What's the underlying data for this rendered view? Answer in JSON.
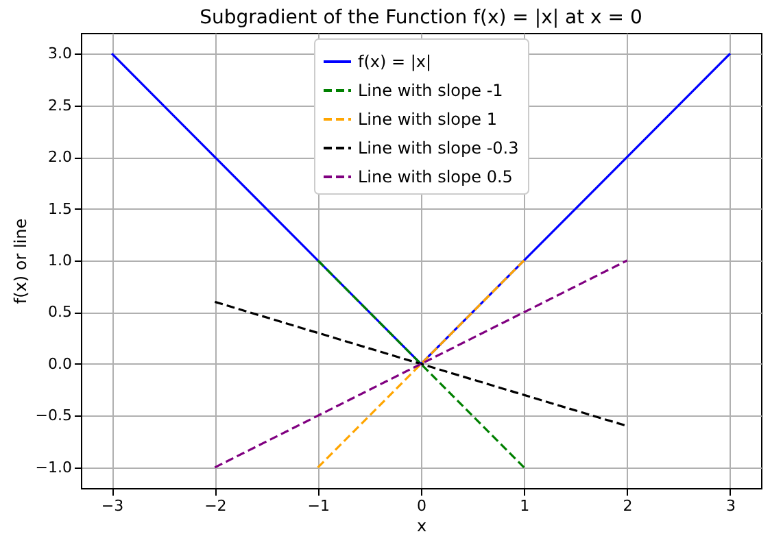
{
  "chart_data": {
    "type": "line",
    "title": "Subgradient of the Function f(x) = |x| at x = 0",
    "xlabel": "x",
    "ylabel": "f(x) or line",
    "xlim": [
      -3.3,
      3.3
    ],
    "xticks": [
      {
        "value": -3,
        "label": "−3"
      },
      {
        "value": -2,
        "label": "−2"
      },
      {
        "value": -1,
        "label": "−1"
      },
      0,
      1,
      2,
      3
    ],
    "ylim": [
      -1.2,
      3.2
    ],
    "yticks": [
      {
        "value": -1,
        "label": "−1.0"
      },
      {
        "value": -0.5,
        "label": "−0.5"
      },
      {
        "value": 0,
        "label": "0.0"
      },
      {
        "value": 0.5,
        "label": "0.5"
      },
      {
        "value": 1,
        "label": "1.0"
      },
      {
        "value": 1.5,
        "label": "1.5"
      },
      {
        "value": 2,
        "label": "2.0"
      },
      {
        "value": 2.5,
        "label": "2.5"
      },
      {
        "value": 3,
        "label": "3.0"
      }
    ],
    "grid": true,
    "legend": "top",
    "series": [
      {
        "name": "f(x) = |x|",
        "color": "#0000ff",
        "line_style": "solid",
        "x": [
          -3,
          0,
          3
        ],
        "values": [
          3,
          0,
          3
        ]
      },
      {
        "name": "Line with slope -1",
        "color": "#008000",
        "line_style": "dashed",
        "x": [
          -1,
          1
        ],
        "values": [
          1,
          -1
        ]
      },
      {
        "name": "Line with slope 1",
        "color": "#ffa500",
        "line_style": "dashed",
        "x": [
          -1,
          1
        ],
        "values": [
          -1,
          1
        ]
      },
      {
        "name": "Line with slope -0.3",
        "color": "#000000",
        "line_style": "dashed",
        "x": [
          -2,
          2
        ],
        "values": [
          0.6,
          -0.6
        ]
      },
      {
        "name": "Line with slope 0.5",
        "color": "#800080",
        "line_style": "dashed",
        "x": [
          -2,
          2
        ],
        "values": [
          -1,
          1
        ]
      }
    ]
  }
}
